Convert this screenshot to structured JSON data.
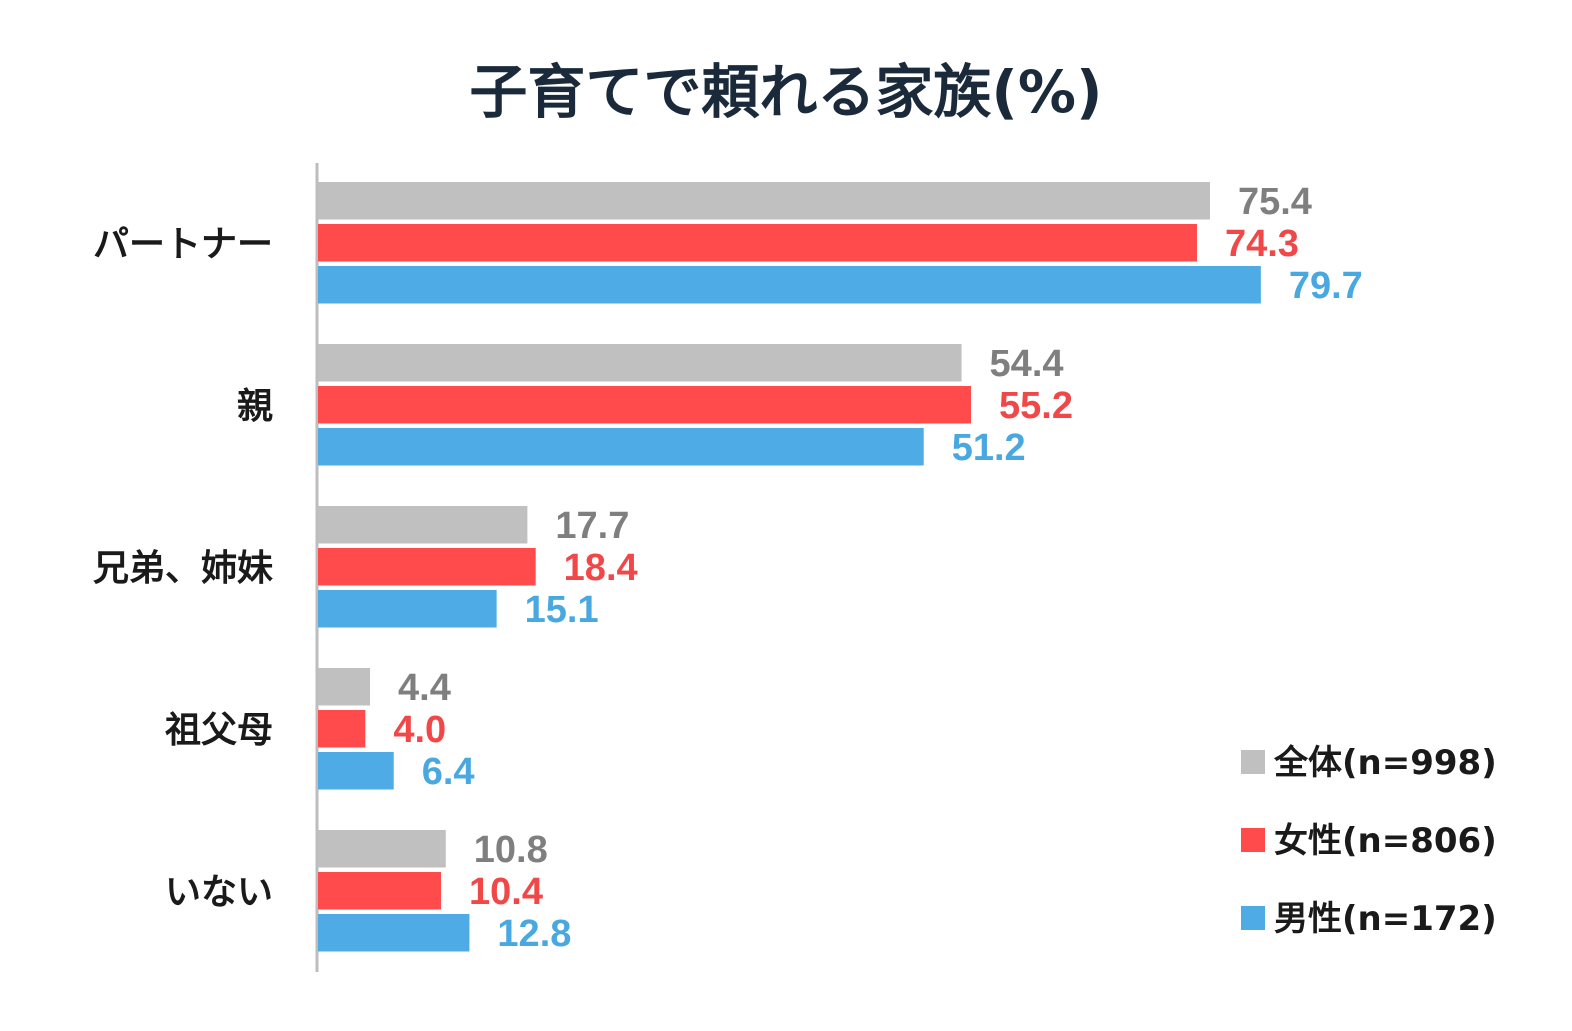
{
  "chart_data": {
    "type": "bar",
    "orientation": "horizontal",
    "title": "子育てで頼れる家族(%)",
    "categories": [
      "パートナー",
      "親",
      "兄弟、姉妹",
      "祖父母",
      "いない"
    ],
    "series": [
      {
        "name": "全体(n=998)",
        "color": "#c0c0c0",
        "label_color": "#7f7f7f",
        "values": [
          75.4,
          54.4,
          17.7,
          4.4,
          10.8
        ],
        "labels": [
          "75.4",
          "54.4",
          "17.7",
          "4.4",
          "10.8"
        ]
      },
      {
        "name": "女性(n=806)",
        "color": "#ff4b4b",
        "label_color": "#f04848",
        "values": [
          74.3,
          55.2,
          18.4,
          4.0,
          10.4
        ],
        "labels": [
          "74.3",
          "55.2",
          "18.4",
          "4.0",
          "10.4"
        ]
      },
      {
        "name": "男性(n=172)",
        "color": "#4eabe6",
        "label_color": "#4aa8e0",
        "values": [
          79.7,
          51.2,
          15.1,
          6.4,
          12.8
        ],
        "labels": [
          "79.7",
          "51.2",
          "15.1",
          "6.4",
          "12.8"
        ]
      }
    ],
    "xlim": [
      0,
      100
    ],
    "grid": false,
    "legend_position": "bottom-right"
  }
}
